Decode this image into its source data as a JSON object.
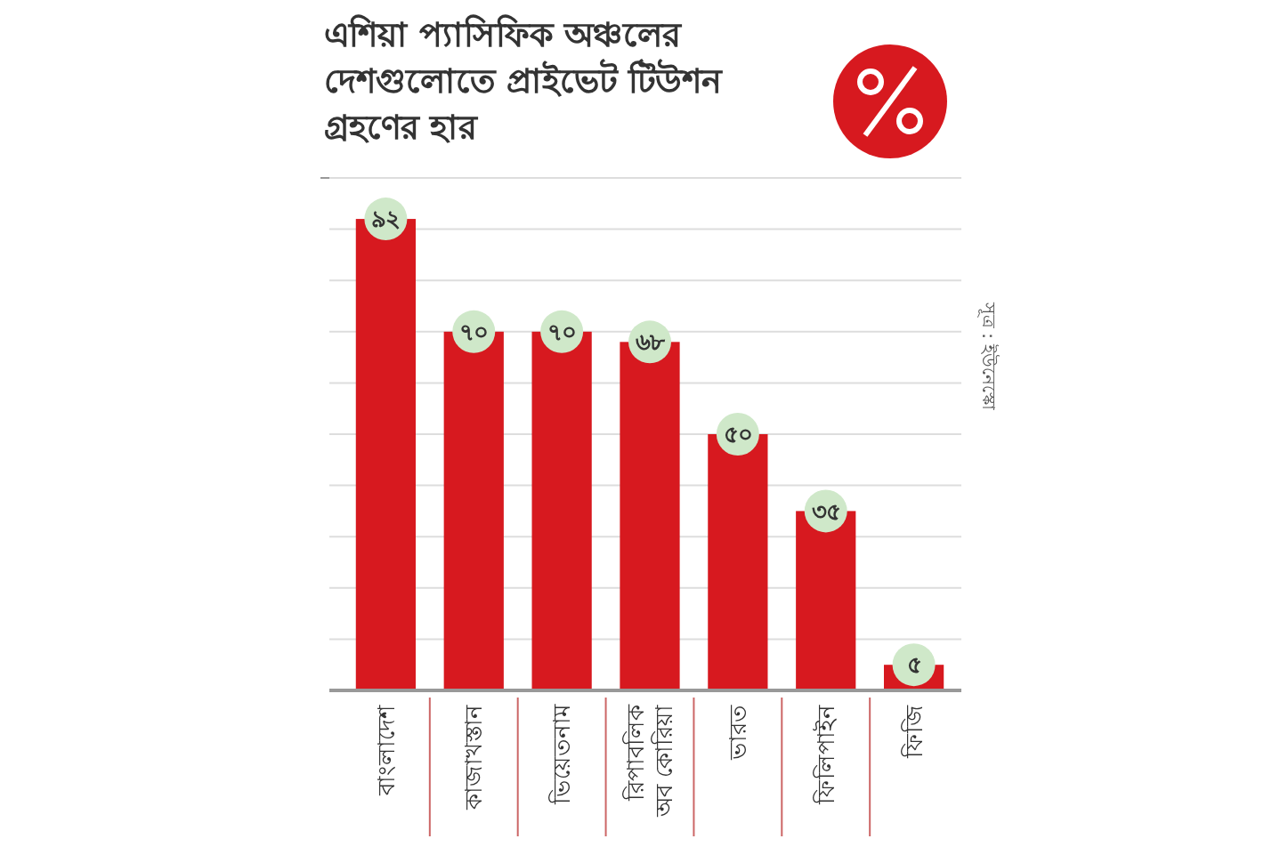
{
  "chart_data": {
    "type": "bar",
    "title": "এশিয়া প্যাসিফিক অঞ্চলের দেশগুলোতে প্রাইভেট টিউশন গ্রহণের হার",
    "categories": [
      "বাংলাদেশ",
      "কাজাখস্তান",
      "ভিয়েতনাম",
      "রিপাবলিক অব কোরিয়া",
      "ভারত",
      "ফিলিপাইন",
      "ফিজি"
    ],
    "values": [
      92,
      70,
      70,
      68,
      50,
      35,
      5
    ],
    "value_labels": [
      "৯২",
      "৭০",
      "৭০",
      "৬৮",
      "৫০",
      "৩৫",
      "৫"
    ],
    "color": "#d7191f",
    "ylim": [
      0,
      100
    ],
    "yticks": [
      {
        "value": 0,
        "label": null
      },
      {
        "value": 10,
        "label": null
      },
      {
        "value": 20,
        "label": null
      },
      {
        "value": 30,
        "label": null
      },
      {
        "value": 40,
        "label": null
      },
      {
        "value": 50,
        "label": null
      },
      {
        "value": 60,
        "label": null
      },
      {
        "value": 70,
        "label": null
      },
      {
        "value": 80,
        "label": null
      },
      {
        "value": 90,
        "label": null
      },
      {
        "value": 100,
        "label": null
      }
    ],
    "tick_labels": "x",
    "grid": "y",
    "annotations": [
      "সূত্র : ইউনেস্কো"
    ]
  }
}
